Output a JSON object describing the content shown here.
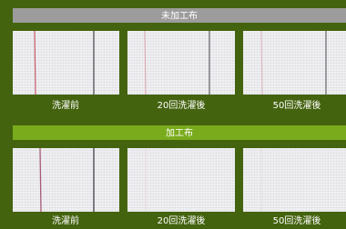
{
  "sections": [
    {
      "title": "未加工布",
      "items": [
        "洗濯前",
        "20回洗濯後",
        "50回洗濯後"
      ]
    },
    {
      "title": "加工布",
      "items": [
        "洗濯前",
        "20回洗濯後",
        "50回洗濯後"
      ]
    }
  ]
}
